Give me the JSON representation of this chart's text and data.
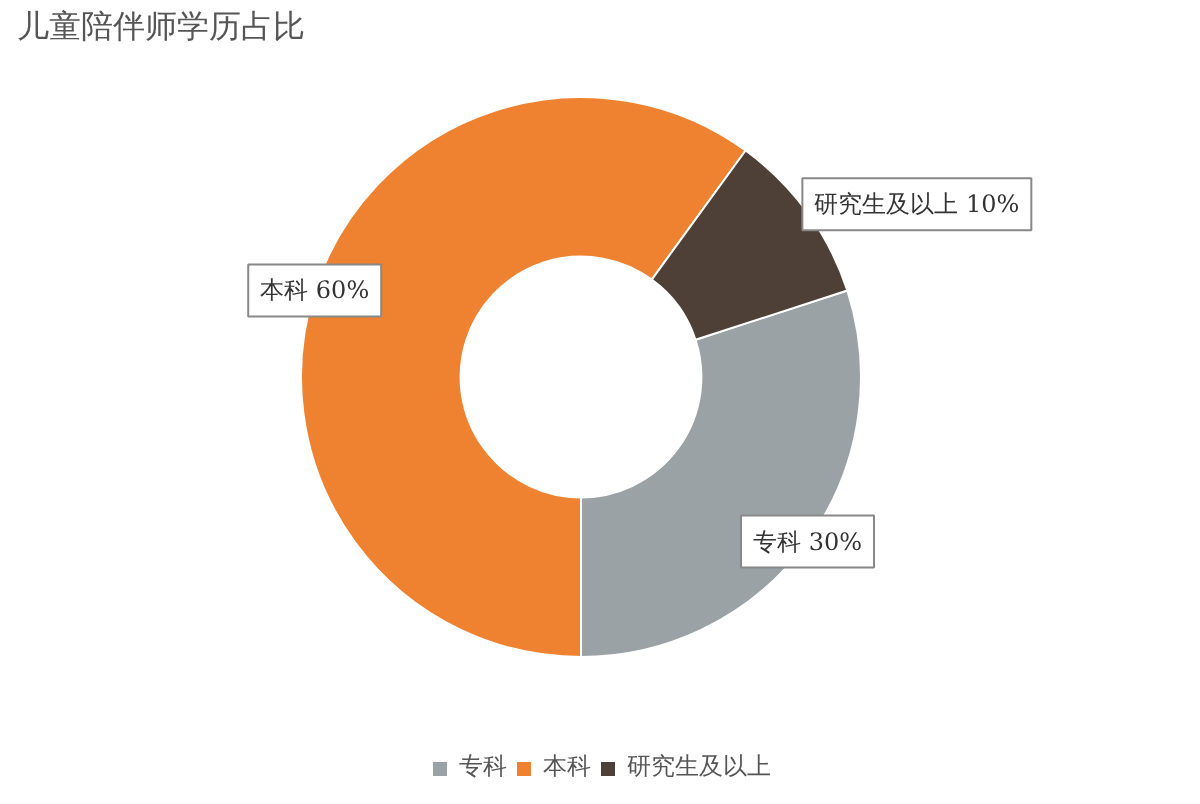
{
  "chart_data": {
    "type": "donut",
    "title": "儿童陪伴师学历占比",
    "categories": [
      "专科",
      "本科",
      "研究生及以上"
    ],
    "values": [
      30,
      60,
      10
    ],
    "colors": [
      "#9aa2a5",
      "#ee8231",
      "#4e4037"
    ],
    "value_labels": [
      "专科 30%",
      "本科 60%",
      "研究生及以上 10%"
    ],
    "legend": "bottom"
  }
}
